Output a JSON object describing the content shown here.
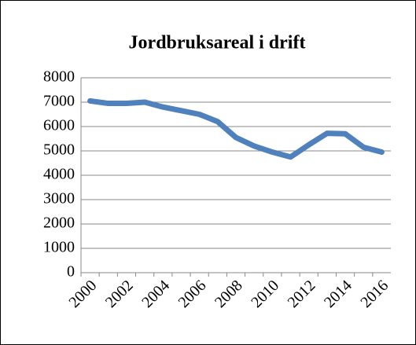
{
  "chart_data": {
    "type": "line",
    "title": "Jordbruksareal i drift",
    "categories": [
      "2000",
      null,
      "2002",
      null,
      "2004",
      null,
      "2006",
      null,
      "2008",
      null,
      "2010",
      null,
      "2012",
      null,
      "2014",
      null,
      "2016"
    ],
    "series": [
      {
        "name": "Jordbruksareal",
        "color": "#4f81bd",
        "values": [
          7050,
          6950,
          6950,
          7000,
          6800,
          6650,
          6500,
          6200,
          5550,
          5200,
          4950,
          4750,
          5250,
          5720,
          5700,
          5150,
          4950
        ]
      }
    ],
    "ylim": [
      0,
      8000
    ],
    "yticks": [
      0,
      1000,
      2000,
      3000,
      4000,
      5000,
      6000,
      7000,
      8000
    ],
    "grid": true,
    "legend": false
  }
}
